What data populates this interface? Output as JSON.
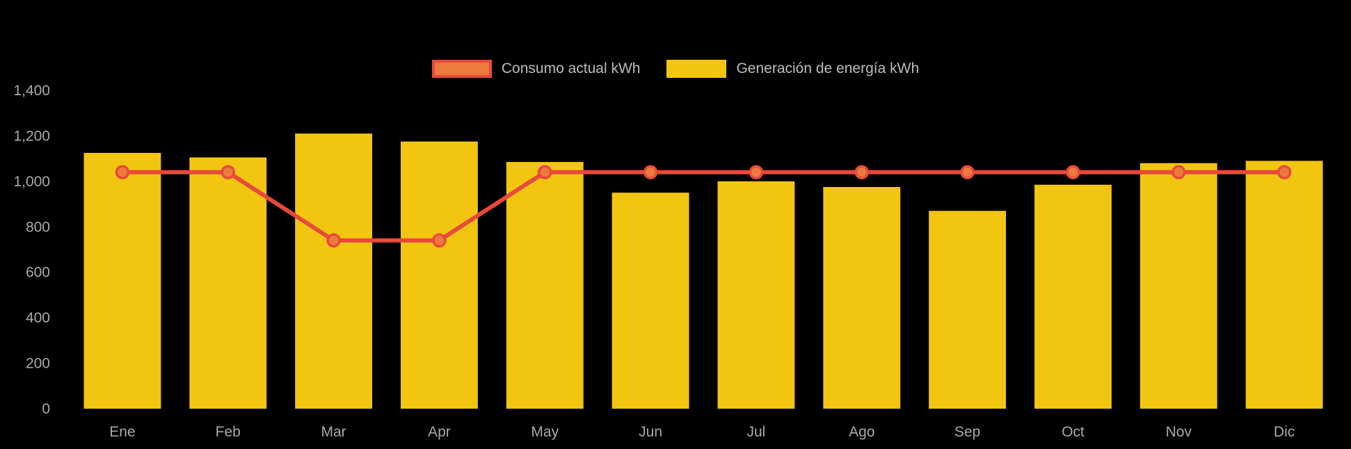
{
  "chart_data": {
    "type": "bar",
    "title": "",
    "categories": [
      "Ene",
      "Feb",
      "Mar",
      "Apr",
      "May",
      "Jun",
      "Jul",
      "Ago",
      "Sep",
      "Oct",
      "Nov",
      "Dic"
    ],
    "series": [
      {
        "name": "Consumo actual kWh",
        "type": "line",
        "color": "#E8493B",
        "point_fill": "#EC7A3C",
        "values": [
          1040,
          1040,
          740,
          740,
          1040,
          1040,
          1040,
          1040,
          1040,
          1040,
          1040,
          1040
        ]
      },
      {
        "name": "Generación de energía kWh",
        "type": "bar",
        "color": "#F2C511",
        "values": [
          1125,
          1105,
          1210,
          1175,
          1085,
          950,
          1000,
          975,
          870,
          985,
          1080,
          1090
        ]
      }
    ],
    "xlabel": "",
    "ylabel": "",
    "ylim": [
      0,
      1400
    ],
    "yticks": [
      0,
      200,
      400,
      600,
      800,
      1000,
      1200,
      1400
    ],
    "ytick_labels": [
      "0",
      "200",
      "400",
      "600",
      "800",
      "1,000",
      "1,200",
      "1,400"
    ],
    "grid": false,
    "legend_position": "top",
    "background": "#000000",
    "text_color": "#A9A9A9"
  },
  "legend": {
    "items": [
      {
        "label": "Consumo actual kWh"
      },
      {
        "label": "Generación de energía kWh"
      }
    ]
  }
}
